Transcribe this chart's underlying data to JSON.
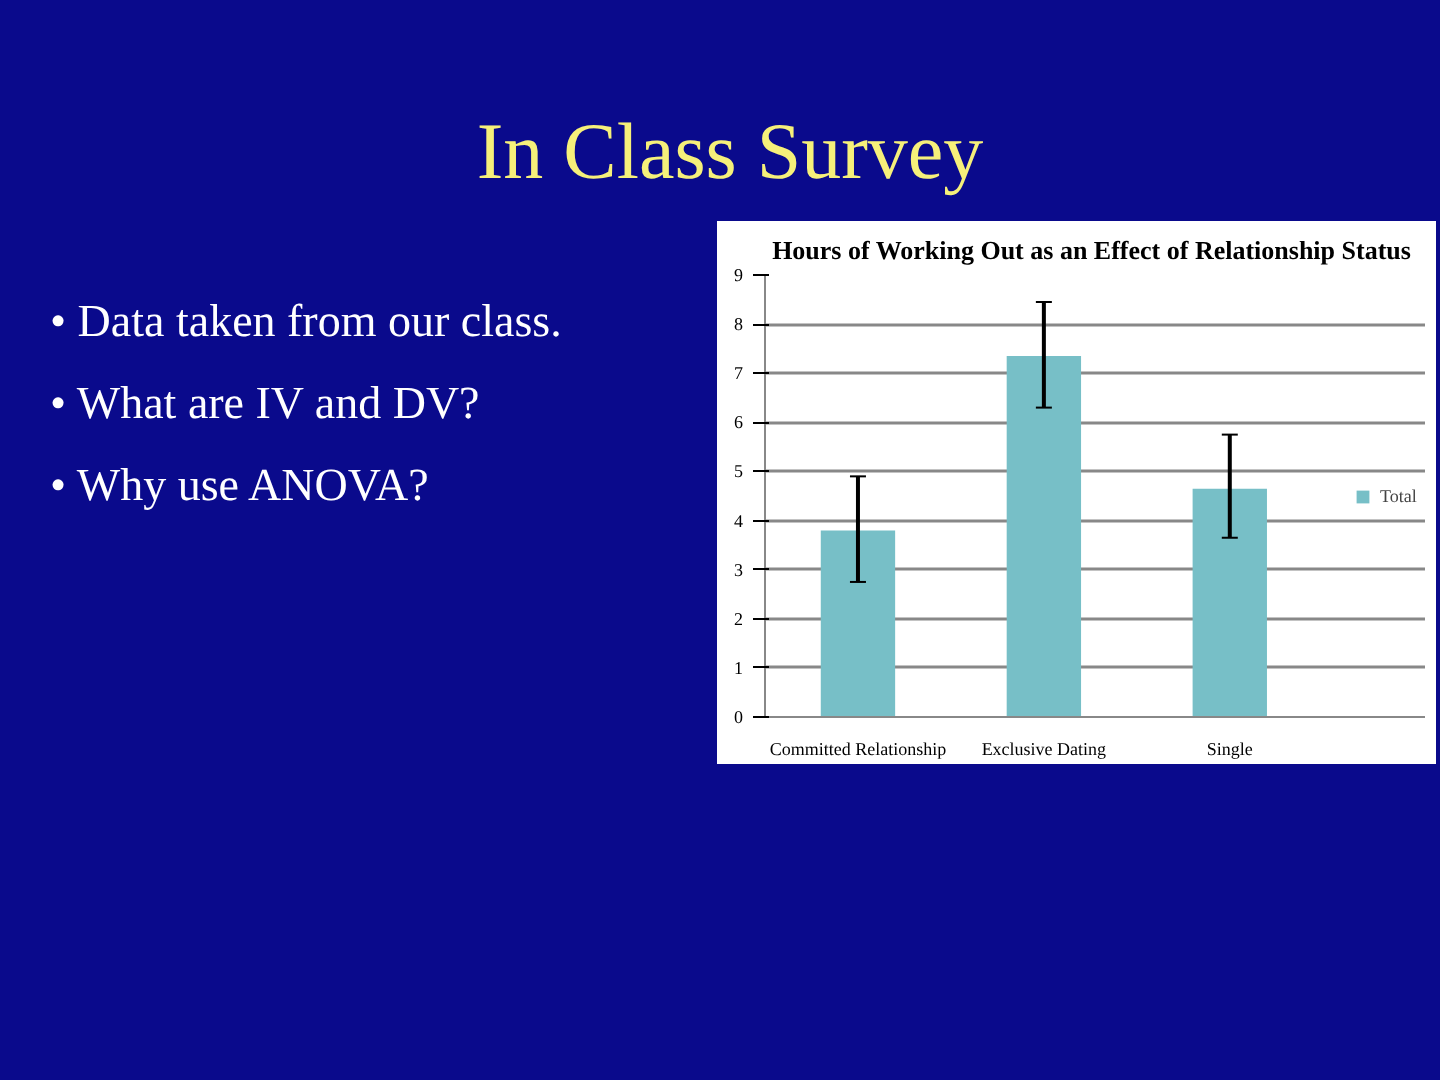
{
  "chart_data": {
    "type": "bar",
    "title": "Hours of Working Out as an Effect of  Relationship Status",
    "categories": [
      "Committed Relationship",
      "Exclusive Dating",
      "Single"
    ],
    "series": [
      {
        "name": "Total",
        "color": "#77bfc7",
        "values": [
          3.8,
          7.35,
          4.65
        ],
        "errors": [
          [
            2.75,
            4.9
          ],
          [
            6.3,
            8.45
          ],
          [
            3.65,
            5.75
          ]
        ]
      }
    ],
    "ylim": [
      0,
      9
    ],
    "yticks": [
      0,
      1,
      2,
      3,
      4,
      5,
      6,
      7,
      8,
      9
    ],
    "grid": "y",
    "legend": "right",
    "annotations": [
      "In Class Survey",
      "• Data taken from our class.",
      "• What are  IV and DV?",
      "• Why use ANOVA?"
    ]
  }
}
